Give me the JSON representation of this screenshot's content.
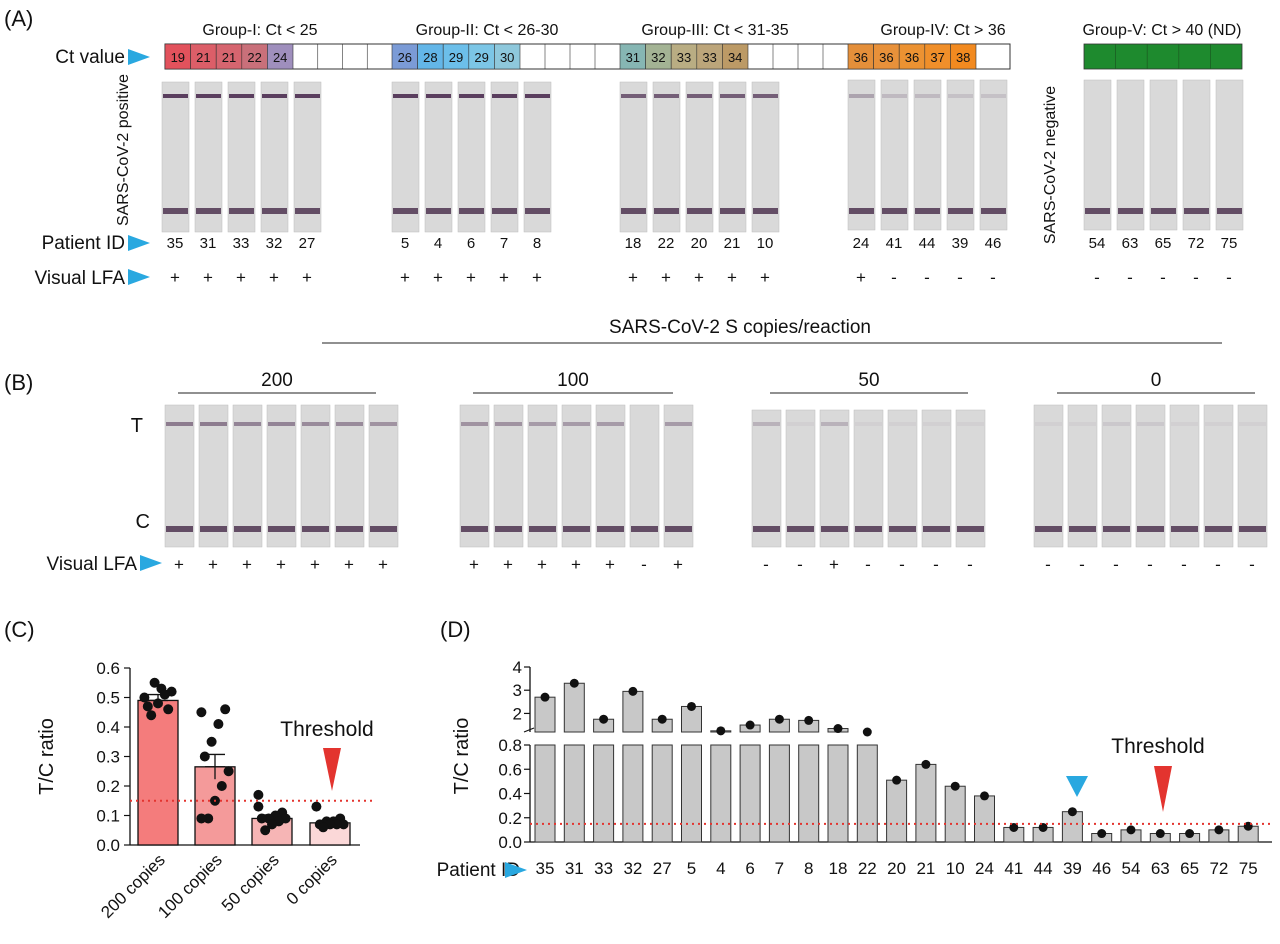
{
  "panelA": {
    "label": "(A)",
    "groups": [
      {
        "title": "Group-I: Ct < 25",
        "ct": [
          "19",
          "21",
          "21",
          "22",
          "24"
        ],
        "colors": [
          "#e2525c",
          "#dc5e68",
          "#d6656f",
          "#c9707a",
          "#9f8fbd"
        ],
        "ids": [
          "35",
          "31",
          "33",
          "32",
          "27"
        ],
        "lfa": [
          "+",
          "+",
          "+",
          "+",
          "+"
        ],
        "tband": [
          1,
          1,
          1,
          1,
          1
        ]
      },
      {
        "title": "Group-II: Ct < 26-30",
        "ct": [
          "26",
          "28",
          "29",
          "29",
          "30"
        ],
        "colors": [
          "#7b9bd6",
          "#63b6e8",
          "#6cbfea",
          "#7cc6e6",
          "#8ec8dc"
        ],
        "ids": [
          "5",
          "4",
          "6",
          "7",
          "8"
        ],
        "lfa": [
          "+",
          "+",
          "+",
          "+",
          "+"
        ],
        "tband": [
          1,
          1,
          1,
          1,
          1
        ]
      },
      {
        "title": "Group-III: Ct < 31-35",
        "ct": [
          "31",
          "32",
          "33",
          "33",
          "34"
        ],
        "colors": [
          "#86b6b3",
          "#a3b394",
          "#b9ad83",
          "#bca57a",
          "#bc9a66"
        ],
        "ids": [
          "18",
          "22",
          "20",
          "21",
          "10"
        ],
        "lfa": [
          "+",
          "+",
          "+",
          "+",
          "+"
        ],
        "tband": [
          0.8,
          0.8,
          0.8,
          0.8,
          0.8
        ]
      },
      {
        "title": "Group-IV: Ct > 36",
        "ct": [
          "36",
          "36",
          "36",
          "37",
          "38"
        ],
        "colors": [
          "#e48f3a",
          "#e8913a",
          "#ec9232",
          "#f08f2a",
          "#f28a20"
        ],
        "ids": [
          "24",
          "41",
          "44",
          "39",
          "46"
        ],
        "lfa": [
          "+",
          "-",
          "-",
          "-",
          "-"
        ],
        "tband": [
          0.35,
          0.2,
          0.2,
          0.15,
          0.15
        ]
      },
      {
        "title": "Group-V: Ct > 40 (ND)",
        "ct": [
          "",
          "",
          "",
          "",
          ""
        ],
        "colors": [
          "#1e8a2e",
          "#1e8a2e",
          "#1e8a2e",
          "#1e8a2e",
          "#1e8a2e"
        ],
        "ids": [
          "54",
          "63",
          "65",
          "72",
          "75"
        ],
        "lfa": [
          "-",
          "-",
          "-",
          "-",
          "-"
        ],
        "tband": [
          0,
          0,
          0,
          0,
          0
        ]
      }
    ],
    "ct_label": "Ct value",
    "positive_label": "SARS-CoV-2 positive",
    "negative_label": "SARS-CoV-2 negative",
    "patient_id_label": "Patient ID",
    "visual_lfa_label": "Visual LFA"
  },
  "panelB": {
    "label": "(B)",
    "header": "SARS-CoV-2 S copies/reaction",
    "t_label": "T",
    "c_label": "C",
    "visual_lfa_label": "Visual LFA",
    "groups": [
      {
        "title": "200",
        "lfa": [
          "+",
          "+",
          "+",
          "+",
          "+",
          "+",
          "+"
        ],
        "tband": [
          0.6,
          0.6,
          0.55,
          0.55,
          0.5,
          0.5,
          0.45
        ]
      },
      {
        "title": "100",
        "lfa": [
          "+",
          "+",
          "+",
          "+",
          "+",
          "-",
          "+"
        ],
        "tband": [
          0.45,
          0.45,
          0.4,
          0.4,
          0.4,
          0,
          0.4
        ]
      },
      {
        "title": "50",
        "lfa": [
          "-",
          "-",
          "+",
          "-",
          "-",
          "-",
          "-"
        ],
        "tband": [
          0.25,
          0.05,
          0.25,
          0.05,
          0.05,
          0.05,
          0.05
        ]
      },
      {
        "title": "0",
        "lfa": [
          "-",
          "-",
          "-",
          "-",
          "-",
          "-",
          "-"
        ],
        "tband": [
          0.05,
          0.05,
          0.1,
          0.1,
          0.05,
          0.05,
          0.05
        ]
      }
    ]
  },
  "panelC": {
    "label": "(C)",
    "threshold_label": "Threshold"
  },
  "panelD": {
    "label": "(D)",
    "threshold_label": "Threshold",
    "patient_id_label": "Patient ID"
  },
  "colors": {
    "arrow": "#29a8e0",
    "threshold": "#e3342f",
    "bar_gray": "#c8c8c8",
    "strip": "#d9d9d9"
  },
  "chart_data": [
    {
      "type": "bar",
      "categories": [
        "200 copies",
        "100 copies",
        "50 copies",
        "0 copies"
      ],
      "values": [
        0.49,
        0.265,
        0.09,
        0.075
      ],
      "errors": [
        0.02,
        0.042,
        0.012,
        0.008
      ],
      "points": [
        [
          0.5,
          0.46,
          0.53,
          0.55,
          0.47,
          0.52,
          0.51,
          0.48,
          0.44
        ],
        [
          0.45,
          0.46,
          0.41,
          0.35,
          0.3,
          0.25,
          0.2,
          0.15,
          0.09,
          0.09
        ],
        [
          0.13,
          0.11,
          0.1,
          0.09,
          0.09,
          0.09,
          0.08,
          0.07,
          0.05,
          0.17
        ],
        [
          0.13,
          0.09,
          0.08,
          0.08,
          0.07,
          0.07,
          0.07,
          0.07,
          0.06
        ]
      ],
      "bar_colors": [
        "#f47c7c",
        "#f49a9a",
        "#f6b5b5",
        "#fbd8d8"
      ],
      "ylabel": "T/C ratio",
      "yticks": [
        "0.0",
        "0.1",
        "0.2",
        "0.3",
        "0.4",
        "0.5",
        "0.6"
      ],
      "ylim": [
        0,
        0.6
      ],
      "threshold": 0.15
    },
    {
      "type": "bar",
      "categories": [
        "35",
        "31",
        "33",
        "32",
        "27",
        "5",
        "4",
        "6",
        "7",
        "8",
        "18",
        "22",
        "20",
        "21",
        "10",
        "24",
        "41",
        "44",
        "39",
        "46",
        "54",
        "63",
        "65",
        "72",
        "75"
      ],
      "values": [
        2.7,
        3.3,
        1.75,
        2.95,
        1.75,
        2.3,
        1.25,
        1.5,
        1.75,
        1.7,
        1.35,
        1.2,
        0.51,
        0.64,
        0.46,
        0.38,
        0.12,
        0.12,
        0.25,
        0.07,
        0.1,
        0.07,
        0.07,
        0.1,
        0.13
      ],
      "ylabel": "T/C ratio",
      "yticks_lower": [
        "0.0",
        "0.2",
        "0.4",
        "0.6",
        "0.8"
      ],
      "yticks_upper": [
        "2",
        "3",
        "4"
      ],
      "ylim": [
        0,
        4
      ],
      "axis_break": [
        0.8,
        1.2
      ],
      "threshold": 0.15
    }
  ]
}
